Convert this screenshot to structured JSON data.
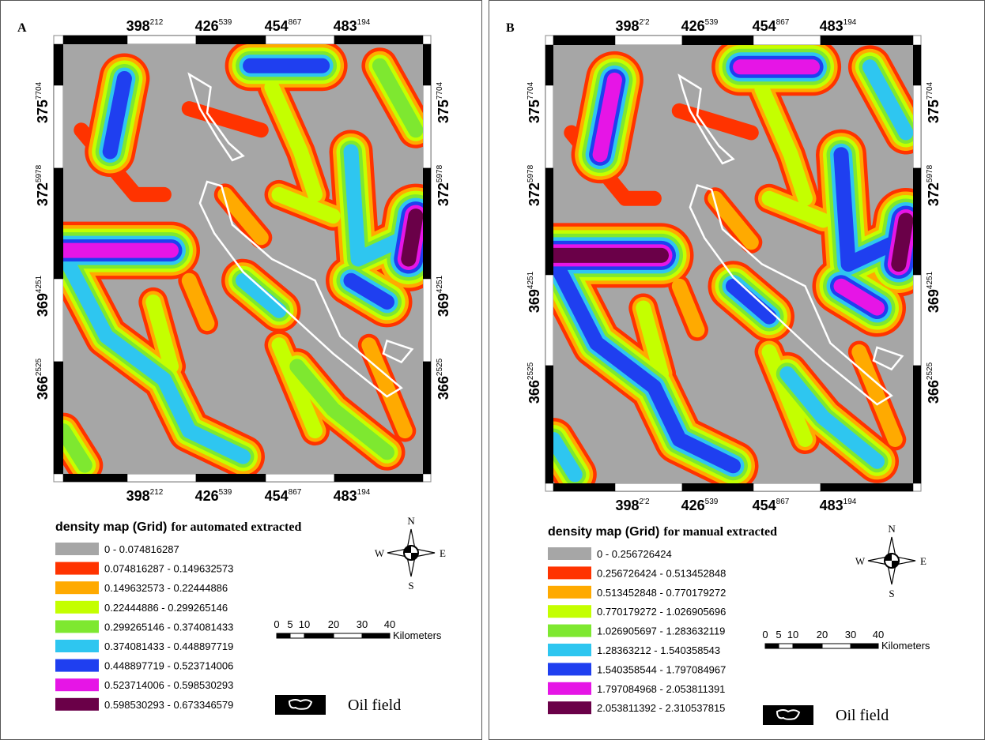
{
  "panels": [
    {
      "label": "A",
      "x_ticks": [
        {
          "main": "398",
          "sup": "212"
        },
        {
          "main": "426",
          "sup": "539"
        },
        {
          "main": "454",
          "sup": "867"
        },
        {
          "main": "483",
          "sup": "194"
        }
      ],
      "y_ticks": [
        {
          "main": "375",
          "sup": "7704"
        },
        {
          "main": "372",
          "sup": "5978"
        },
        {
          "main": "369",
          "sup": "4251"
        },
        {
          "main": "366",
          "sup": "2525"
        }
      ],
      "legend_title": "density map (Grid)",
      "legend_subtitle": "for automated extracted",
      "legend": [
        {
          "label": "0 - 0.074816287",
          "color": "#a6a6a6"
        },
        {
          "label": "0.074816287 - 0.149632573",
          "color": "#ff3300"
        },
        {
          "label": "0.149632573 - 0.22444886",
          "color": "#ffaa00"
        },
        {
          "label": "0.22444886 - 0.299265146",
          "color": "#c4ff00"
        },
        {
          "label": "0.299265146 - 0.374081433",
          "color": "#7ee830"
        },
        {
          "label": "0.374081433 - 0.448897719",
          "color": "#2ec6f0"
        },
        {
          "label": "0.448897719 - 0.523714006",
          "color": "#1f3ff0"
        },
        {
          "label": "0.523714006 - 0.598530293",
          "color": "#e615e6"
        },
        {
          "label": "0.598530293 - 0.673346579",
          "color": "#6a0048"
        }
      ],
      "compass": {
        "n": "N",
        "e": "E",
        "s": "S",
        "w": "W"
      },
      "scale_labels": [
        "0",
        "5",
        "10",
        "20",
        "30",
        "40"
      ],
      "scale_unit": "Kilometers",
      "oil_field": "Oil field"
    },
    {
      "label": "B",
      "x_ticks": [
        {
          "main": "398",
          "sup": "2'2"
        },
        {
          "main": "426",
          "sup": "539"
        },
        {
          "main": "454",
          "sup": "867"
        },
        {
          "main": "483",
          "sup": "194"
        }
      ],
      "y_ticks": [
        {
          "main": "375",
          "sup": "7704"
        },
        {
          "main": "372",
          "sup": "5978"
        },
        {
          "main": "369",
          "sup": "4251"
        },
        {
          "main": "366",
          "sup": "2525"
        }
      ],
      "legend_title": "density map (Grid)",
      "legend_subtitle": "for manual extracted",
      "legend": [
        {
          "label": "0 - 0.256726424",
          "color": "#a6a6a6"
        },
        {
          "label": "0.256726424 - 0.513452848",
          "color": "#ff3300"
        },
        {
          "label": "0.513452848 - 0.770179272",
          "color": "#ffaa00"
        },
        {
          "label": "0.770179272 - 1.026905696",
          "color": "#c4ff00"
        },
        {
          "label": "1.026905697 - 1.283632119",
          "color": "#7ee830"
        },
        {
          "label": "1.28363212 - 1.540358543",
          "color": "#2ec6f0"
        },
        {
          "label": "1.540358544 - 1.797084967",
          "color": "#1f3ff0"
        },
        {
          "label": "1.797084968 - 2.053811391",
          "color": "#e615e6"
        },
        {
          "label": "2.053811392 - 2.310537815",
          "color": "#6a0048"
        }
      ],
      "compass": {
        "n": "N",
        "e": "E",
        "s": "S",
        "w": "W"
      },
      "scale_labels": [
        "0",
        "5",
        "10",
        "20",
        "30",
        "40"
      ],
      "scale_unit": "Kilometers",
      "oil_field": "Oil field"
    }
  ]
}
